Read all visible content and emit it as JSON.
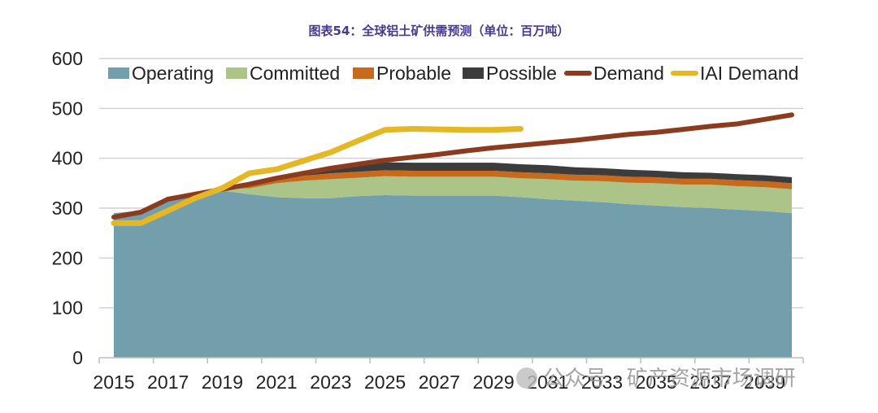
{
  "chart_data": {
    "type": "area",
    "title": "图表54：全球铝土矿供需预测（单位：百万吨）",
    "x": [
      2015,
      2016,
      2017,
      2018,
      2019,
      2020,
      2021,
      2022,
      2023,
      2024,
      2025,
      2026,
      2027,
      2028,
      2029,
      2030,
      2031,
      2032,
      2033,
      2034,
      2035,
      2036,
      2037,
      2038,
      2039,
      2040
    ],
    "x_tick_labels": [
      "2015",
      "2017",
      "2019",
      "2021",
      "2023",
      "2025",
      "2027",
      "2029",
      "2031",
      "2033",
      "2035",
      "2037",
      "2039"
    ],
    "ylim": [
      0,
      600
    ],
    "y_ticks": [
      0,
      100,
      200,
      300,
      400,
      500,
      600
    ],
    "y_tick_labels": [
      "0",
      "100",
      "200",
      "300",
      "400",
      "500",
      "600"
    ],
    "grid": "horizontal",
    "legend_position": "top",
    "stacked_series": [
      {
        "name": "Operating",
        "color": "#739eab",
        "values": [
          290,
          295,
          315,
          328,
          335,
          328,
          322,
          320,
          320,
          324,
          326,
          325,
          325,
          325,
          325,
          322,
          318,
          315,
          312,
          308,
          305,
          302,
          300,
          297,
          294,
          290
        ]
      },
      {
        "name": "Committed",
        "color": "#adc489",
        "values": [
          0,
          0,
          3,
          5,
          3,
          12,
          28,
          35,
          38,
          37,
          38,
          38,
          38,
          38,
          38,
          38,
          40,
          40,
          42,
          43,
          45,
          45,
          47,
          47,
          48,
          48
        ]
      },
      {
        "name": "Probable",
        "color": "#c86a1e",
        "values": [
          0,
          0,
          0,
          0,
          0,
          5,
          8,
          10,
          12,
          12,
          12,
          12,
          12,
          12,
          12,
          12,
          12,
          12,
          12,
          12,
          12,
          12,
          12,
          12,
          12,
          12
        ]
      },
      {
        "name": "Possible",
        "color": "#3c3c3c",
        "values": [
          0,
          0,
          0,
          0,
          0,
          5,
          5,
          8,
          12,
          14,
          16,
          16,
          16,
          16,
          16,
          16,
          16,
          15,
          14,
          14,
          13,
          13,
          12,
          12,
          12,
          12
        ]
      }
    ],
    "line_series": [
      {
        "name": "Demand",
        "color": "#8c3c1e",
        "values": [
          282,
          292,
          318,
          328,
          338,
          348,
          360,
          370,
          380,
          388,
          396,
          402,
          408,
          415,
          421,
          426,
          431,
          436,
          442,
          448,
          452,
          458,
          464,
          469,
          478,
          487
        ]
      },
      {
        "name": "IAI Demand",
        "color": "#e5b725",
        "values": [
          270,
          270,
          295,
          320,
          340,
          370,
          378,
          395,
          412,
          435,
          457,
          459,
          458,
          457,
          457,
          459
        ]
      }
    ],
    "legend": [
      "Operating",
      "Committed",
      "Probable",
      "Possible",
      "Demand",
      "IAI Demand"
    ]
  },
  "watermark": {
    "text": "公众号 · 矿产资源市场调研"
  }
}
